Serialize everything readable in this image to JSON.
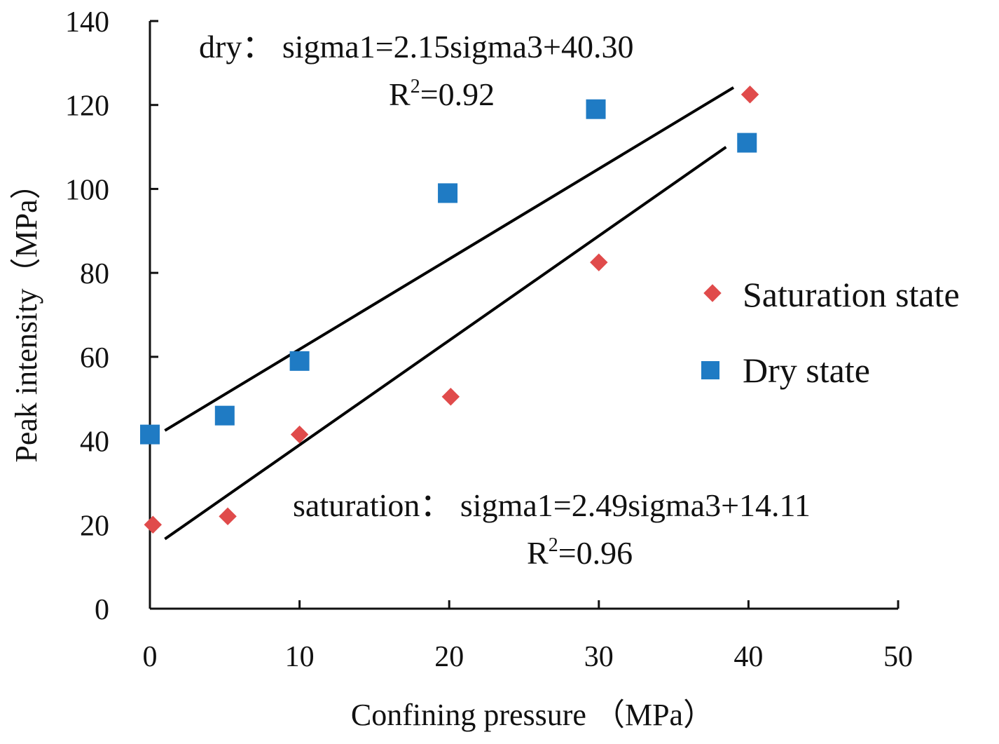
{
  "chart_data": {
    "type": "scatter",
    "xlabel": "Confining pressure （MPa）",
    "ylabel": "Peak intensity（MPa）",
    "xlim": [
      0,
      50
    ],
    "ylim": [
      0,
      140
    ],
    "x_ticks": [
      0,
      10,
      20,
      30,
      40,
      50
    ],
    "y_ticks": [
      0,
      20,
      40,
      60,
      80,
      100,
      120,
      140
    ],
    "grid": false,
    "legend_position": "right",
    "series": [
      {
        "name": "Saturation state",
        "marker": "diamond",
        "color": "#e04b4b",
        "points": [
          {
            "x": 0.2,
            "y": 20
          },
          {
            "x": 5.2,
            "y": 22
          },
          {
            "x": 10,
            "y": 41.5
          },
          {
            "x": 20.1,
            "y": 50.5
          },
          {
            "x": 30,
            "y": 82.5
          },
          {
            "x": 40.1,
            "y": 122.5
          }
        ],
        "fit": {
          "slope": 2.49,
          "intercept": 14.11,
          "x_range": [
            1,
            38.5
          ]
        }
      },
      {
        "name": "Dry state",
        "marker": "square",
        "color": "#1f7bc4",
        "points": [
          {
            "x": 0,
            "y": 41.5
          },
          {
            "x": 5,
            "y": 46
          },
          {
            "x": 10,
            "y": 59
          },
          {
            "x": 19.9,
            "y": 99
          },
          {
            "x": 29.8,
            "y": 119
          },
          {
            "x": 39.9,
            "y": 111
          }
        ],
        "fit": {
          "slope": 2.15,
          "intercept": 40.3,
          "x_range": [
            1,
            39
          ]
        }
      }
    ],
    "annotations": {
      "dry_equation": "dry： sigma1=2.15sigma3+40.30",
      "dry_r2_label": "R",
      "dry_r2_sup": "2",
      "dry_r2_value": "=0.92",
      "sat_equation": "saturation： sigma1=2.49sigma3+14.11",
      "sat_r2_label": "R",
      "sat_r2_sup": "2",
      "sat_r2_value": "=0.96"
    }
  }
}
